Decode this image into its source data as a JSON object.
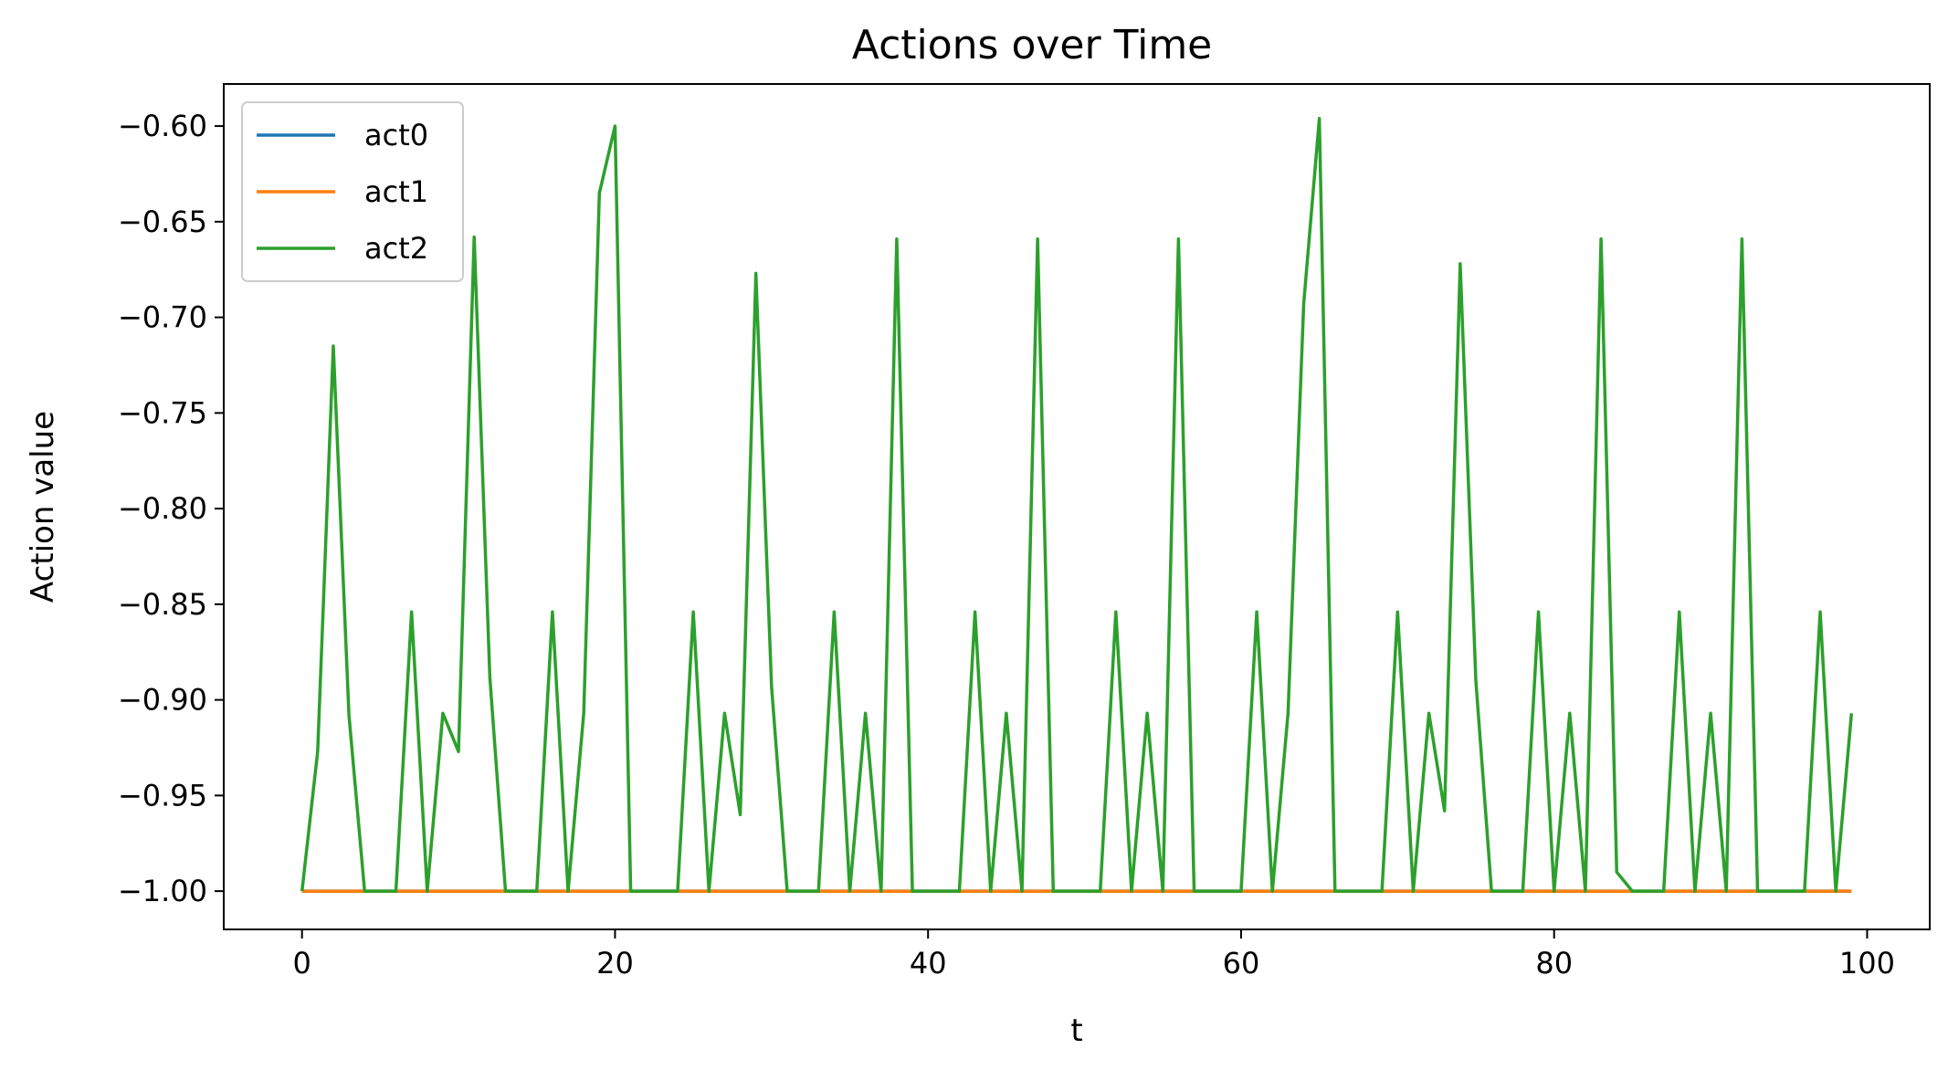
{
  "chart_data": {
    "type": "line",
    "title": "Actions over Time",
    "xlabel": "t",
    "ylabel": "Action value",
    "xlim": [
      -5,
      104
    ],
    "ylim": [
      -1.02,
      -0.578
    ],
    "xticks": [
      0,
      20,
      40,
      60,
      80,
      100
    ],
    "xtick_labels": [
      "0",
      "20",
      "40",
      "60",
      "80",
      "100"
    ],
    "yticks": [
      -1.0,
      -0.95,
      -0.9,
      -0.85,
      -0.8,
      -0.75,
      -0.7,
      -0.65,
      -0.6
    ],
    "ytick_labels": [
      "−1.00",
      "−0.95",
      "−0.90",
      "−0.85",
      "−0.80",
      "−0.75",
      "−0.70",
      "−0.65",
      "−0.60"
    ],
    "legend_position": "top-left",
    "grid": false,
    "x": [
      0,
      1,
      2,
      3,
      4,
      5,
      6,
      7,
      8,
      9,
      10,
      11,
      12,
      13,
      14,
      15,
      16,
      17,
      18,
      19,
      20,
      21,
      22,
      23,
      24,
      25,
      26,
      27,
      28,
      29,
      30,
      31,
      32,
      33,
      34,
      35,
      36,
      37,
      38,
      39,
      40,
      41,
      42,
      43,
      44,
      45,
      46,
      47,
      48,
      49,
      50,
      51,
      52,
      53,
      54,
      55,
      56,
      57,
      58,
      59,
      60,
      61,
      62,
      63,
      64,
      65,
      66,
      67,
      68,
      69,
      70,
      71,
      72,
      73,
      74,
      75,
      76,
      77,
      78,
      79,
      80,
      81,
      82,
      83,
      84,
      85,
      86,
      87,
      88,
      89,
      90,
      91,
      92,
      93,
      94,
      95,
      96,
      97,
      98,
      99
    ],
    "series": [
      {
        "name": "act0",
        "color": "#1f77b4",
        "values": [
          -1,
          -1,
          -1,
          -1,
          -1,
          -1,
          -1,
          -1,
          -1,
          -1,
          -1,
          -1,
          -1,
          -1,
          -1,
          -1,
          -1,
          -1,
          -1,
          -1,
          -1,
          -1,
          -1,
          -1,
          -1,
          -1,
          -1,
          -1,
          -1,
          -1,
          -1,
          -1,
          -1,
          -1,
          -1,
          -1,
          -1,
          -1,
          -1,
          -1,
          -1,
          -1,
          -1,
          -1,
          -1,
          -1,
          -1,
          -1,
          -1,
          -1,
          -1,
          -1,
          -1,
          -1,
          -1,
          -1,
          -1,
          -1,
          -1,
          -1,
          -1,
          -1,
          -1,
          -1,
          -1,
          -1,
          -1,
          -1,
          -1,
          -1,
          -1,
          -1,
          -1,
          -1,
          -1,
          -1,
          -1,
          -1,
          -1,
          -1,
          -1,
          -1,
          -1,
          -1,
          -1,
          -1,
          -1,
          -1,
          -1,
          -1,
          -1,
          -1,
          -1,
          -1,
          -1,
          -1,
          -1,
          -1,
          -1,
          -1
        ]
      },
      {
        "name": "act1",
        "color": "#ff7f0e",
        "values": [
          -1,
          -1,
          -1,
          -1,
          -1,
          -1,
          -1,
          -1,
          -1,
          -1,
          -1,
          -1,
          -1,
          -1,
          -1,
          -1,
          -1,
          -1,
          -1,
          -1,
          -1,
          -1,
          -1,
          -1,
          -1,
          -1,
          -1,
          -1,
          -1,
          -1,
          -1,
          -1,
          -1,
          -1,
          -1,
          -1,
          -1,
          -1,
          -1,
          -1,
          -1,
          -1,
          -1,
          -1,
          -1,
          -1,
          -1,
          -1,
          -1,
          -1,
          -1,
          -1,
          -1,
          -1,
          -1,
          -1,
          -1,
          -1,
          -1,
          -1,
          -1,
          -1,
          -1,
          -1,
          -1,
          -1,
          -1,
          -1,
          -1,
          -1,
          -1,
          -1,
          -1,
          -1,
          -1,
          -1,
          -1,
          -1,
          -1,
          -1,
          -1,
          -1,
          -1,
          -1,
          -1,
          -1,
          -1,
          -1,
          -1,
          -1,
          -1,
          -1,
          -1,
          -1,
          -1,
          -1,
          -1,
          -1,
          -1,
          -1
        ]
      },
      {
        "name": "act2",
        "color": "#2ca02c",
        "values": [
          -1,
          -0.927,
          -0.715,
          -0.908,
          -1,
          -1,
          -1,
          -0.854,
          -1,
          -0.907,
          -0.927,
          -0.658,
          -0.888,
          -1,
          -1,
          -1,
          -0.854,
          -1,
          -0.907,
          -0.635,
          -0.6,
          -1,
          -1,
          -1,
          -1,
          -0.854,
          -1,
          -0.907,
          -0.96,
          -0.677,
          -0.893,
          -1,
          -1,
          -1,
          -0.854,
          -1,
          -0.907,
          -1,
          -0.659,
          -1,
          -1,
          -1,
          -1,
          -0.854,
          -1,
          -0.907,
          -1,
          -0.659,
          -1,
          -1,
          -1,
          -1,
          -0.854,
          -1,
          -0.907,
          -1,
          -0.659,
          -1,
          -1,
          -1,
          -1,
          -0.854,
          -1,
          -0.907,
          -0.693,
          -0.596,
          -1,
          -1,
          -1,
          -1,
          -0.854,
          -1,
          -0.907,
          -0.958,
          -0.672,
          -0.89,
          -1,
          -1,
          -1,
          -0.854,
          -1,
          -0.907,
          -1,
          -0.659,
          -0.99,
          -1,
          -1,
          -1,
          -0.854,
          -1,
          -0.907,
          -1,
          -0.659,
          -1,
          -1,
          -1,
          -1,
          -0.854,
          -1,
          -0.907
        ]
      }
    ]
  }
}
